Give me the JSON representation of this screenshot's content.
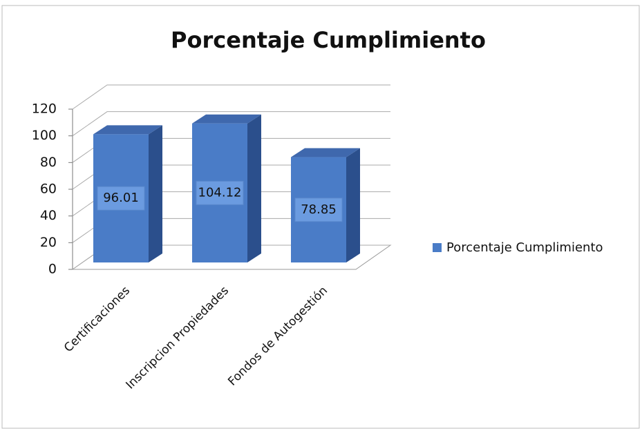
{
  "chart_data": {
    "type": "bar3d",
    "title": "Porcentaje Cumplimiento",
    "categories": [
      "Certificaciones",
      "Inscripcion Propiedades",
      "Fondos de Autogestión"
    ],
    "series": [
      {
        "name": "Porcentaje Cumplimiento",
        "color": "#4a7cc7",
        "values": [
          96.01,
          104.12,
          78.85
        ]
      }
    ],
    "ylim": [
      0,
      120
    ],
    "yticks": [
      0,
      20,
      40,
      60,
      80,
      100,
      120
    ],
    "grid": true,
    "legend": "right"
  }
}
